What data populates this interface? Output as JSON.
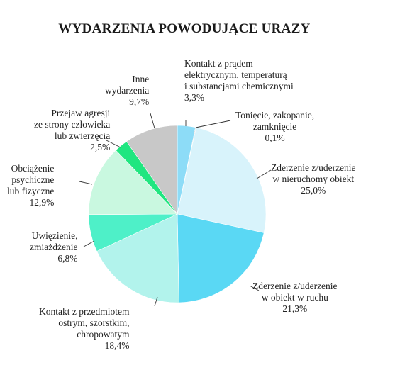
{
  "chart_data": {
    "type": "pie",
    "title": "WYDARZENIA POWODUJĄCE URAZY",
    "slices": [
      {
        "lines": [
          "Kontakt z prądem",
          "elektrycznym, temperaturą",
          "i substancjami chemicznymi"
        ],
        "value": 3.3,
        "label": "3,3%",
        "color": "#8ddcf7"
      },
      {
        "lines": [
          "Tonięcie, zakopanie,",
          "zamknięcie"
        ],
        "value": 0.1,
        "label": "0,1%",
        "color": "#4a4a4a"
      },
      {
        "lines": [
          "Zderzenie z/uderzenie",
          "w nieruchomy obiekt"
        ],
        "value": 25.0,
        "label": "25,0%",
        "color": "#d8f3fb"
      },
      {
        "lines": [
          "Zderzenie z/uderzenie",
          "w obiekt w ruchu"
        ],
        "value": 21.3,
        "label": "21,3%",
        "color": "#5ad8f4"
      },
      {
        "lines": [
          "Kontakt z przedmiotem",
          "ostrym, szorstkim,",
          "chropowatym"
        ],
        "value": 18.4,
        "label": "18,4%",
        "color": "#b2f3ec"
      },
      {
        "lines": [
          "Uwięzienie,",
          "zmiażdżenie"
        ],
        "value": 6.8,
        "label": "6,8%",
        "color": "#4ef0c8"
      },
      {
        "lines": [
          "Obciążenie",
          "psychiczne",
          "lub fizyczne"
        ],
        "value": 12.9,
        "label": "12,9%",
        "color": "#c9f8e0"
      },
      {
        "lines": [
          "Przejaw agresji",
          "ze strony człowieka",
          "lub zwierzęcia"
        ],
        "value": 2.5,
        "label": "2,5%",
        "color": "#20e680"
      },
      {
        "lines": [
          "Inne",
          "wydarzenia"
        ],
        "value": 9.7,
        "label": "9,7%",
        "color": "#c8c8c8"
      }
    ]
  }
}
